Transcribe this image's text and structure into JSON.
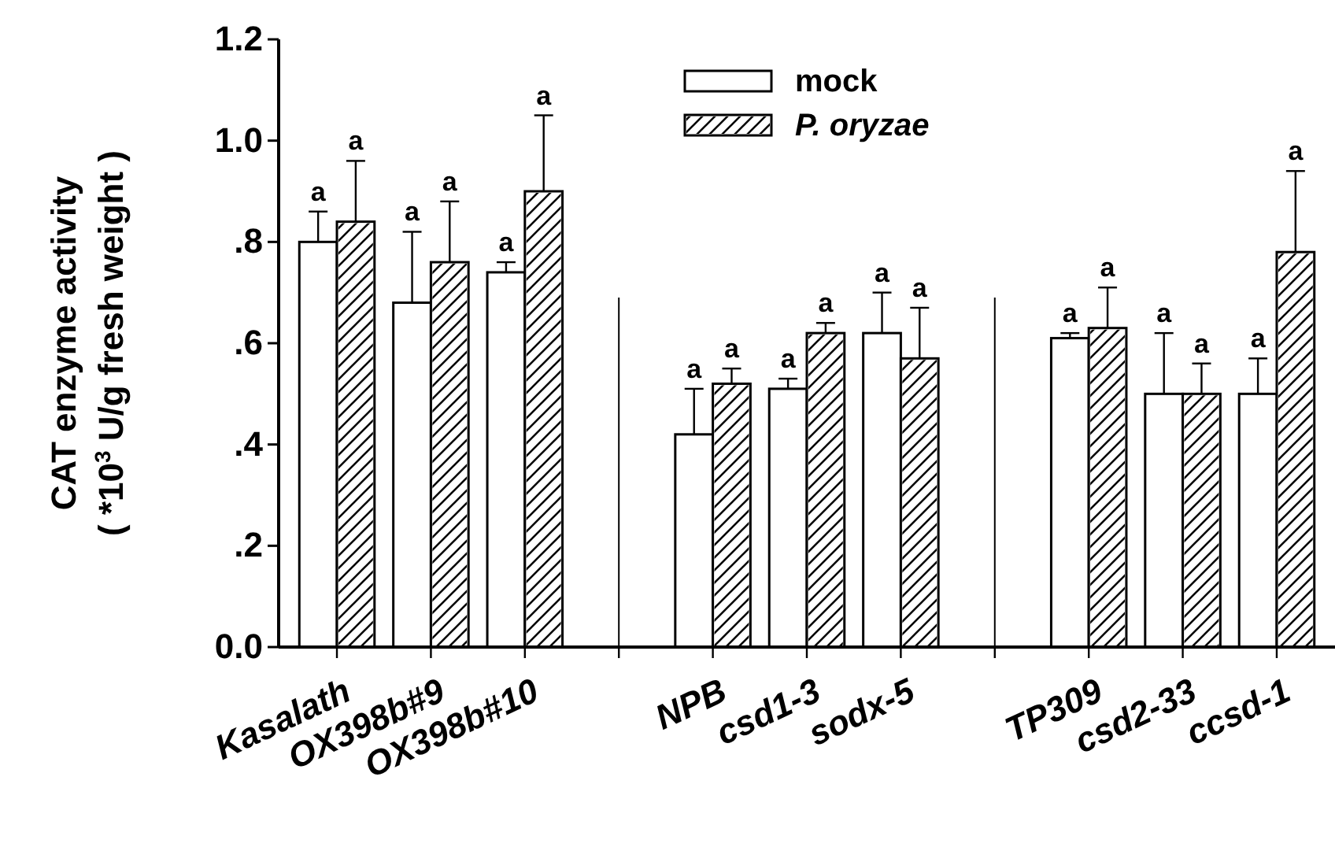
{
  "chart_data": {
    "type": "bar",
    "ylabel": "CAT enzyme activity\n( *10$^{3}$ U/g fresh weight )",
    "categories": [
      "Kasalath",
      "OX398b#9",
      "OX398b#10",
      null,
      "NPB",
      "csd1-3",
      "sodx-5",
      null,
      "TP309",
      "csd2-33",
      "ccsd-1"
    ],
    "series": [
      {
        "name": "mock",
        "color": "#ffffff",
        "values": [
          0.8,
          0.68,
          0.74,
          null,
          0.42,
          0.51,
          0.62,
          null,
          0.61,
          0.5,
          0.5
        ],
        "errors": [
          0.06,
          0.14,
          0.02,
          null,
          0.09,
          0.02,
          0.08,
          null,
          0.01,
          0.12,
          0.07
        ]
      },
      {
        "name": "P. oryzae",
        "color": "#ffffff",
        "values": [
          0.84,
          0.76,
          0.9,
          null,
          0.52,
          0.62,
          0.57,
          null,
          0.63,
          0.5,
          0.78
        ],
        "errors": [
          0.12,
          0.12,
          0.15,
          null,
          0.03,
          0.02,
          0.1,
          null,
          0.08,
          0.06,
          0.16
        ]
      }
    ],
    "ylim": [
      0,
      1.2
    ],
    "yticks": [
      {
        "value": 0,
        "label": "0.0"
      },
      {
        "value": 0.2,
        "label": ".2"
      },
      {
        "value": 0.4,
        "label": ".4"
      },
      {
        "value": 0.6,
        "label": ".6"
      },
      {
        "value": 0.8,
        "label": ".8"
      },
      {
        "value": 1.0,
        "label": "1.0"
      },
      {
        "value": 1.2,
        "label": "1.2"
      }
    ],
    "legend": "top",
    "annotations": [
      "a",
      "a",
      "a",
      "a",
      "a",
      "a",
      "a",
      "a",
      "a",
      "a",
      "a",
      "a",
      "a",
      "a",
      "a",
      "a",
      "a",
      "a"
    ]
  }
}
